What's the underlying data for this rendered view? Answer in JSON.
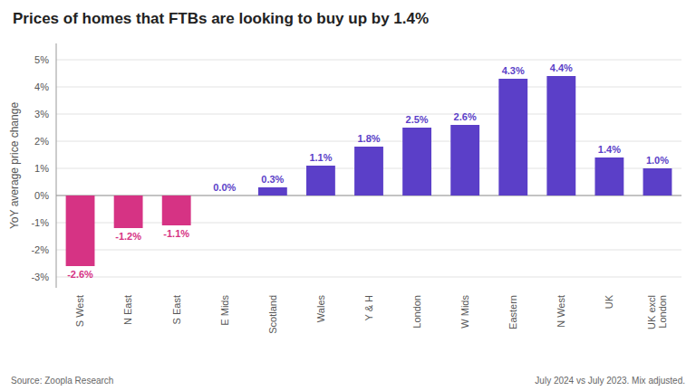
{
  "chart_data": {
    "type": "bar",
    "title": "Prices of homes that FTBs are looking to buy up by 1.4%",
    "y_label": "YoY average price change",
    "categories": [
      "S West",
      "N East",
      "S East",
      "E Mids",
      "Scotland",
      "Wales",
      "Y & H",
      "London",
      "W Mids",
      "Eastern",
      "N West",
      "UK",
      "UK excl\nLondon"
    ],
    "values": [
      -2.6,
      -1.2,
      -1.1,
      0.0,
      0.3,
      1.1,
      1.8,
      2.5,
      2.6,
      4.3,
      4.4,
      1.4,
      1.0
    ],
    "value_labels": [
      "-2.6%",
      "-1.2%",
      "-1.1%",
      "0.0%",
      "0.3%",
      "1.1%",
      "1.8%",
      "2.5%",
      "2.6%",
      "4.3%",
      "4.4%",
      "1.4%",
      "1.0%"
    ],
    "data_labels": true,
    "colors": [
      "#d63384",
      "#d63384",
      "#d63384",
      "#5b3fc8",
      "#5b3fc8",
      "#5b3fc8",
      "#5b3fc8",
      "#5b3fc8",
      "#5b3fc8",
      "#5b3fc8",
      "#5b3fc8",
      "#5b3fc8",
      "#5b3fc8"
    ],
    "ylim": [
      -3.4,
      5.6
    ],
    "yticks": [
      {
        "value": -3,
        "label": "-3%"
      },
      {
        "value": -2,
        "label": "-2%"
      },
      {
        "value": -1,
        "label": "-1%"
      },
      {
        "value": 0,
        "label": "0%"
      },
      {
        "value": 1,
        "label": "1%"
      },
      {
        "value": 2,
        "label": "2%"
      },
      {
        "value": 3,
        "label": "3%"
      },
      {
        "value": 4,
        "label": "4%"
      },
      {
        "value": 5,
        "label": "5%"
      }
    ],
    "grid": true,
    "annotations": [
      "Source: Zoopla Research",
      "July 2024 vs July 2023. Mix adjusted."
    ]
  }
}
